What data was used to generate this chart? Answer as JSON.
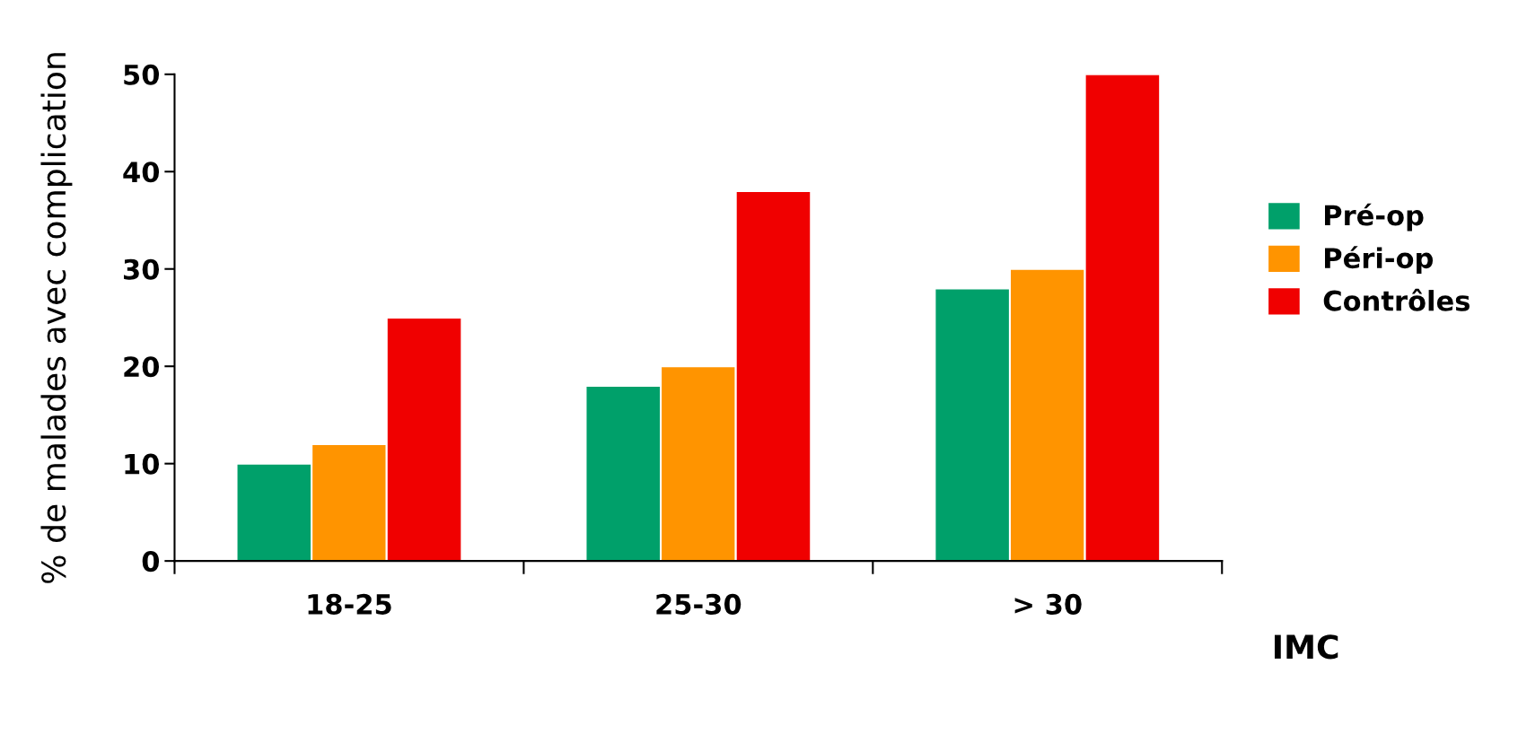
{
  "chart_data": {
    "type": "bar",
    "categories": [
      "18-25",
      "25-30",
      "> 30"
    ],
    "series": [
      {
        "name": "Pré-op",
        "color": "#00a06a",
        "values": [
          10,
          18,
          28
        ]
      },
      {
        "name": "Péri-op",
        "color": "#ff9400",
        "values": [
          12,
          20,
          30
        ]
      },
      {
        "name": "Contrôles",
        "color": "#f00000",
        "values": [
          25,
          38,
          50
        ]
      }
    ],
    "xlabel": "IMC",
    "ylabel": "% de malades avec complication",
    "ylim": [
      0,
      50
    ],
    "yticks": [
      0,
      10,
      20,
      30,
      40,
      50
    ],
    "grid": false,
    "legend": "right"
  }
}
